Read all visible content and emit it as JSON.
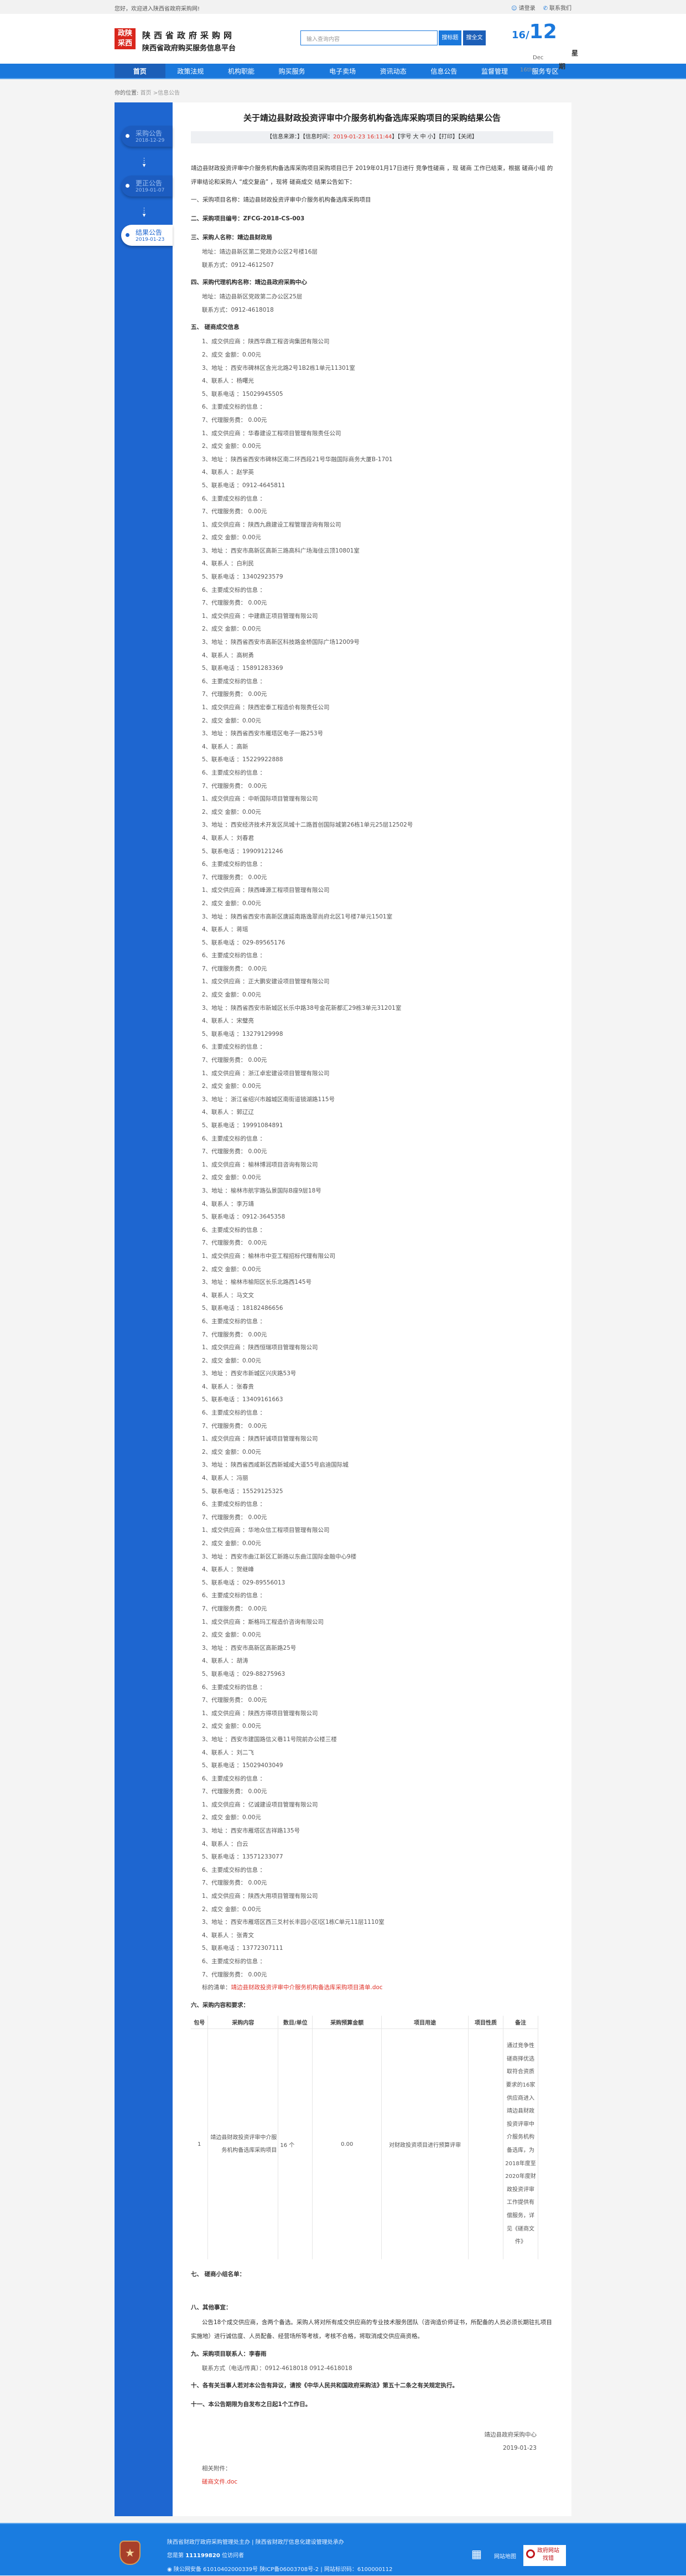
{
  "topbar": {
    "welcome": "您好，欢迎进入陕西省政府采购网!",
    "login": "请登录",
    "contact": "联系我们"
  },
  "header": {
    "logo": "政陕采西",
    "site_name": "陕西省政府采购网",
    "site_subtitle": "陕西省政府购买服务信息平台",
    "search_placeholder": "输入查询内容",
    "search_title_btn": "搜标题",
    "search_full_btn": "搜全文",
    "date_day": "16",
    "date_month": "12",
    "date_mon_name": "Dec",
    "date_th": "16th",
    "weekday_1": "星",
    "weekday_2": "期"
  },
  "nav": [
    "首页",
    "政策法规",
    "机构职能",
    "购买服务",
    "电子卖场",
    "资讯动态",
    "信息公告",
    "监督管理",
    "服务专区"
  ],
  "breadcrumb": {
    "label": "你的位置:",
    "path": "首页 >信息公告"
  },
  "sidebar": [
    {
      "title": "采购公告",
      "date": "2018-12-29"
    },
    {
      "title": "更正公告",
      "date": "2019-01-07"
    },
    {
      "title": "结果公告",
      "date": "2019-01-23",
      "active": true
    }
  ],
  "article": {
    "title": "关于靖边县财政投资评审中介服务机构备选库采购项目的采购结果公告",
    "info_source": "【信息来源：】【信息时间：",
    "info_time": "2019-01-23 16:11:44",
    "info_tail": "】【字号 大 中 小】【打印】【关闭】",
    "intro": "靖边县财政投资评审中介服务机构备选库采购项目采购项目已于 2019年01月17日进行 竞争性磋商 ，现 磋商 工作已结束，根据 磋商小组 的评审结论和采购人 “成交复函” ，现将 磋商成交 结果公告如下：",
    "s1": "一、采购项目名称：靖边县财政投资评审中介服务机构备选库采购项目",
    "s2": "二、采购项目编号：ZFCG-2018-CS-003",
    "s3": "三、采购人名称：靖边县财政局",
    "s3_addr": "地址：靖边县新区第二党政办公区2号楼16层",
    "s3_tel": "联系方式：0912-4612507",
    "s4": "四、采购代理机构名称：靖边县政府采购中心",
    "s4_addr": "地址：靖边县新区党政第二办公区25层",
    "s4_tel": "联系方式：0912-4618018",
    "s5": "五、 磋商成交信息",
    "labels": {
      "supplier": "1、成交供应商 ：",
      "amount": "2、成交 金额：",
      "address": "3、地址 ：",
      "contact": "4、联系人 ：",
      "phone": "5、联系电话 ：",
      "subject": "6、主要成交标的信息 ：",
      "fee": "7、代理服务费： "
    },
    "suppliers": [
      {
        "name": "陕西华鼎工程咨询集团有限公司",
        "amount": "0.00元",
        "address": "西安市碑林区含光北路2号1B2栋1单元11301室",
        "contact": "杨曙光",
        "phone": "15029945505",
        "fee": "0.00元"
      },
      {
        "name": "华春建设工程项目管理有限责任公司",
        "amount": "0.00元",
        "address": "陕西省西安市碑林区南二环西段21号华融国际商务大厦B-1701",
        "contact": "赵学英",
        "phone": "0912-4645811",
        "fee": "0.00元"
      },
      {
        "name": "陕西九鼎建设工程管理咨询有限公司",
        "amount": "0.00元",
        "address": "西安市高新区高新三路高科广场海佳云顶10801室",
        "contact": "白利民",
        "phone": "13402923579",
        "fee": "0.00元"
      },
      {
        "name": "中建鼎正项目管理有限公司",
        "amount": "0.00元",
        "address": "陕西省西安市高新区科技路金桥国际广场12009号",
        "contact": "高树勇",
        "phone": "15891283369",
        "fee": "0.00元"
      },
      {
        "name": "陕西宏泰工程造价有限责任公司",
        "amount": "0.00元",
        "address": "陕西省西安市雁塔区电子一路253号",
        "contact": "高新",
        "phone": "15229922888",
        "fee": "0.00元"
      },
      {
        "name": "中昕国际项目管理有限公司",
        "amount": "0.00元",
        "address": "西安经济技术开发区凤城十二路首创国际城第26栋1单元25层12502号",
        "contact": "刘春君",
        "phone": "19909121246",
        "fee": "0.00元"
      },
      {
        "name": "陕西峰源工程项目管理有限公司",
        "amount": "0.00元",
        "address": "陕西省西安市高新区唐延南路逸翠尚府北区1号楼7单元1501室",
        "contact": "蒋瑶",
        "phone": "029-89565176",
        "fee": "0.00元"
      },
      {
        "name": "正大鹏安建设项目管理有限公司",
        "amount": "0.00元",
        "address": "陕西省西安市新城区长乐中路38号金花新都汇29栋3单元31201室",
        "contact": "宋璧亮",
        "phone": "13279129998",
        "fee": "0.00元"
      },
      {
        "name": "浙江卓宏建设项目管理有限公司",
        "amount": "0.00元",
        "address": "浙江省绍兴市越城区南街道镜湖路115号",
        "contact": "郭辽辽",
        "phone": "19991084891",
        "fee": "0.00元"
      },
      {
        "name": "榆林博润项目咨询有限公司",
        "amount": "0.00元",
        "address": "榆林市航宇路弘景国际B座9层18号",
        "contact": "李万靖",
        "phone": "0912-3645358",
        "fee": "0.00元"
      },
      {
        "name": "榆林市中亚工程招标代理有限公司",
        "amount": "0.00元",
        "address": "榆林市榆阳区长乐北路西145号",
        "contact": "马文文",
        "phone": "18182486656",
        "fee": "0.00元"
      },
      {
        "name": "陕西恒瑞项目管理有限公司",
        "amount": "0.00元",
        "address": "西安市新城区兴庆路53号",
        "contact": "张春贵",
        "phone": "13409161663",
        "fee": "0.00元"
      },
      {
        "name": "陕西轩诚项目管理有限公司",
        "amount": "0.00元",
        "address": "陕西省西咸新区西新城咸大道55号启迪国际城",
        "contact": "冯丽",
        "phone": "15529125325",
        "fee": "0.00元"
      },
      {
        "name": "华地众信工程项目管理有限公司",
        "amount": "0.00元",
        "address": "西安市曲江新区汇新路以东曲江国际金融中心9楼",
        "contact": "贺继峰",
        "phone": "029-89556013",
        "fee": "0.00元"
      },
      {
        "name": "斯格玛工程造价咨询有限公司",
        "amount": "0.00元",
        "address": "西安市高新区高新路25号",
        "contact": "胡涛",
        "phone": "029-88275963",
        "fee": "0.00元"
      },
      {
        "name": "陕西方得项目管理有限公司",
        "amount": "0.00元",
        "address": "西安市建国路信义巷11号院前办公楼三楼",
        "contact": "刘二飞",
        "phone": "15029403049",
        "fee": "0.00元"
      },
      {
        "name": "亿诚建设项目管理有限公司",
        "amount": "0.00元",
        "address": "西安市雁塔区吉祥路135号",
        "contact": "白云",
        "phone": "13571233077",
        "fee": "0.00元"
      },
      {
        "name": "陕西大用项目管理有限公司",
        "amount": "0.00元",
        "address": "西安市雁塔区西三爻村长丰园小区I区1栋C单元11层1110室",
        "contact": "张青文",
        "phone": "13772307111",
        "fee": "0.00元"
      }
    ],
    "list_label": "标的清单：",
    "list_file": "靖边县财政投资评审中介服务机构备选库采购项目清单.doc",
    "s6": "六、采购内容和要求：",
    "table": {
      "headers": [
        "包号",
        "采购内容",
        "数目/单位",
        "采购预算金额",
        "项目用途",
        "项目性质",
        "备注"
      ],
      "row": [
        "1",
        "靖边县财政投资评审中介服务机构备选库采购项目",
        "16 个",
        "0.00",
        "对财政投资项目进行预算评审",
        "",
        "通过竞争性磋商择优选取符合资质要求的16家供应商进入靖边县财政投资评审中介服务机构备选库，为2018年度至2020年度财政投资评审工作提供有偿服务，详见《磋商文件》"
      ]
    },
    "s7": "七、 磋商小组名单：",
    "s8": "八、其他事宜：",
    "s8_text": "公告18个成交供应商，含两个备选。采购人将对所有成交供应商的专业技术服务团队（咨询造价师证书，所配备的人员必须长期驻扎项目实施地）进行诚信度、人员配备、经营场所等考核，考核不合格，将取消成交供应商资格。",
    "s9": "九、采购项目联系人：李春雨",
    "s9_tel": "联系方式（电话/传真）：0912-4618018  0912-4618018",
    "s10": "十、各有关当事人若对本公告有异议，请按《中华人民共和国政府采购法》第五十二条之有关规定执行。",
    "s11": "十一、本公告期限为自发布之日起1个工作日。",
    "sign_org": "靖边县政府采购中心",
    "sign_date": "2019-01-23",
    "attach_label": "相关附件：",
    "attach_file": "磋商文件.doc"
  },
  "footer": {
    "line1": "陕西省财政厅政府采购管理处主办 | 陕西省财政厅信息化建设管理处承办",
    "visitor_pre": "您是第 ",
    "visitor_count": "111199820",
    "visitor_post": " 位访问者",
    "icp": "陕公网安备 61010402000339号   陕ICP备06003708号-2   |   网站标识码：6100000112",
    "sitemap": "网站地图",
    "jiucuo_1": "政府网站",
    "jiucuo_2": "找错"
  },
  "colors": {
    "primary": "#1a78dc",
    "sidebar": "#1e66d0",
    "highlight": "#e0332a"
  }
}
